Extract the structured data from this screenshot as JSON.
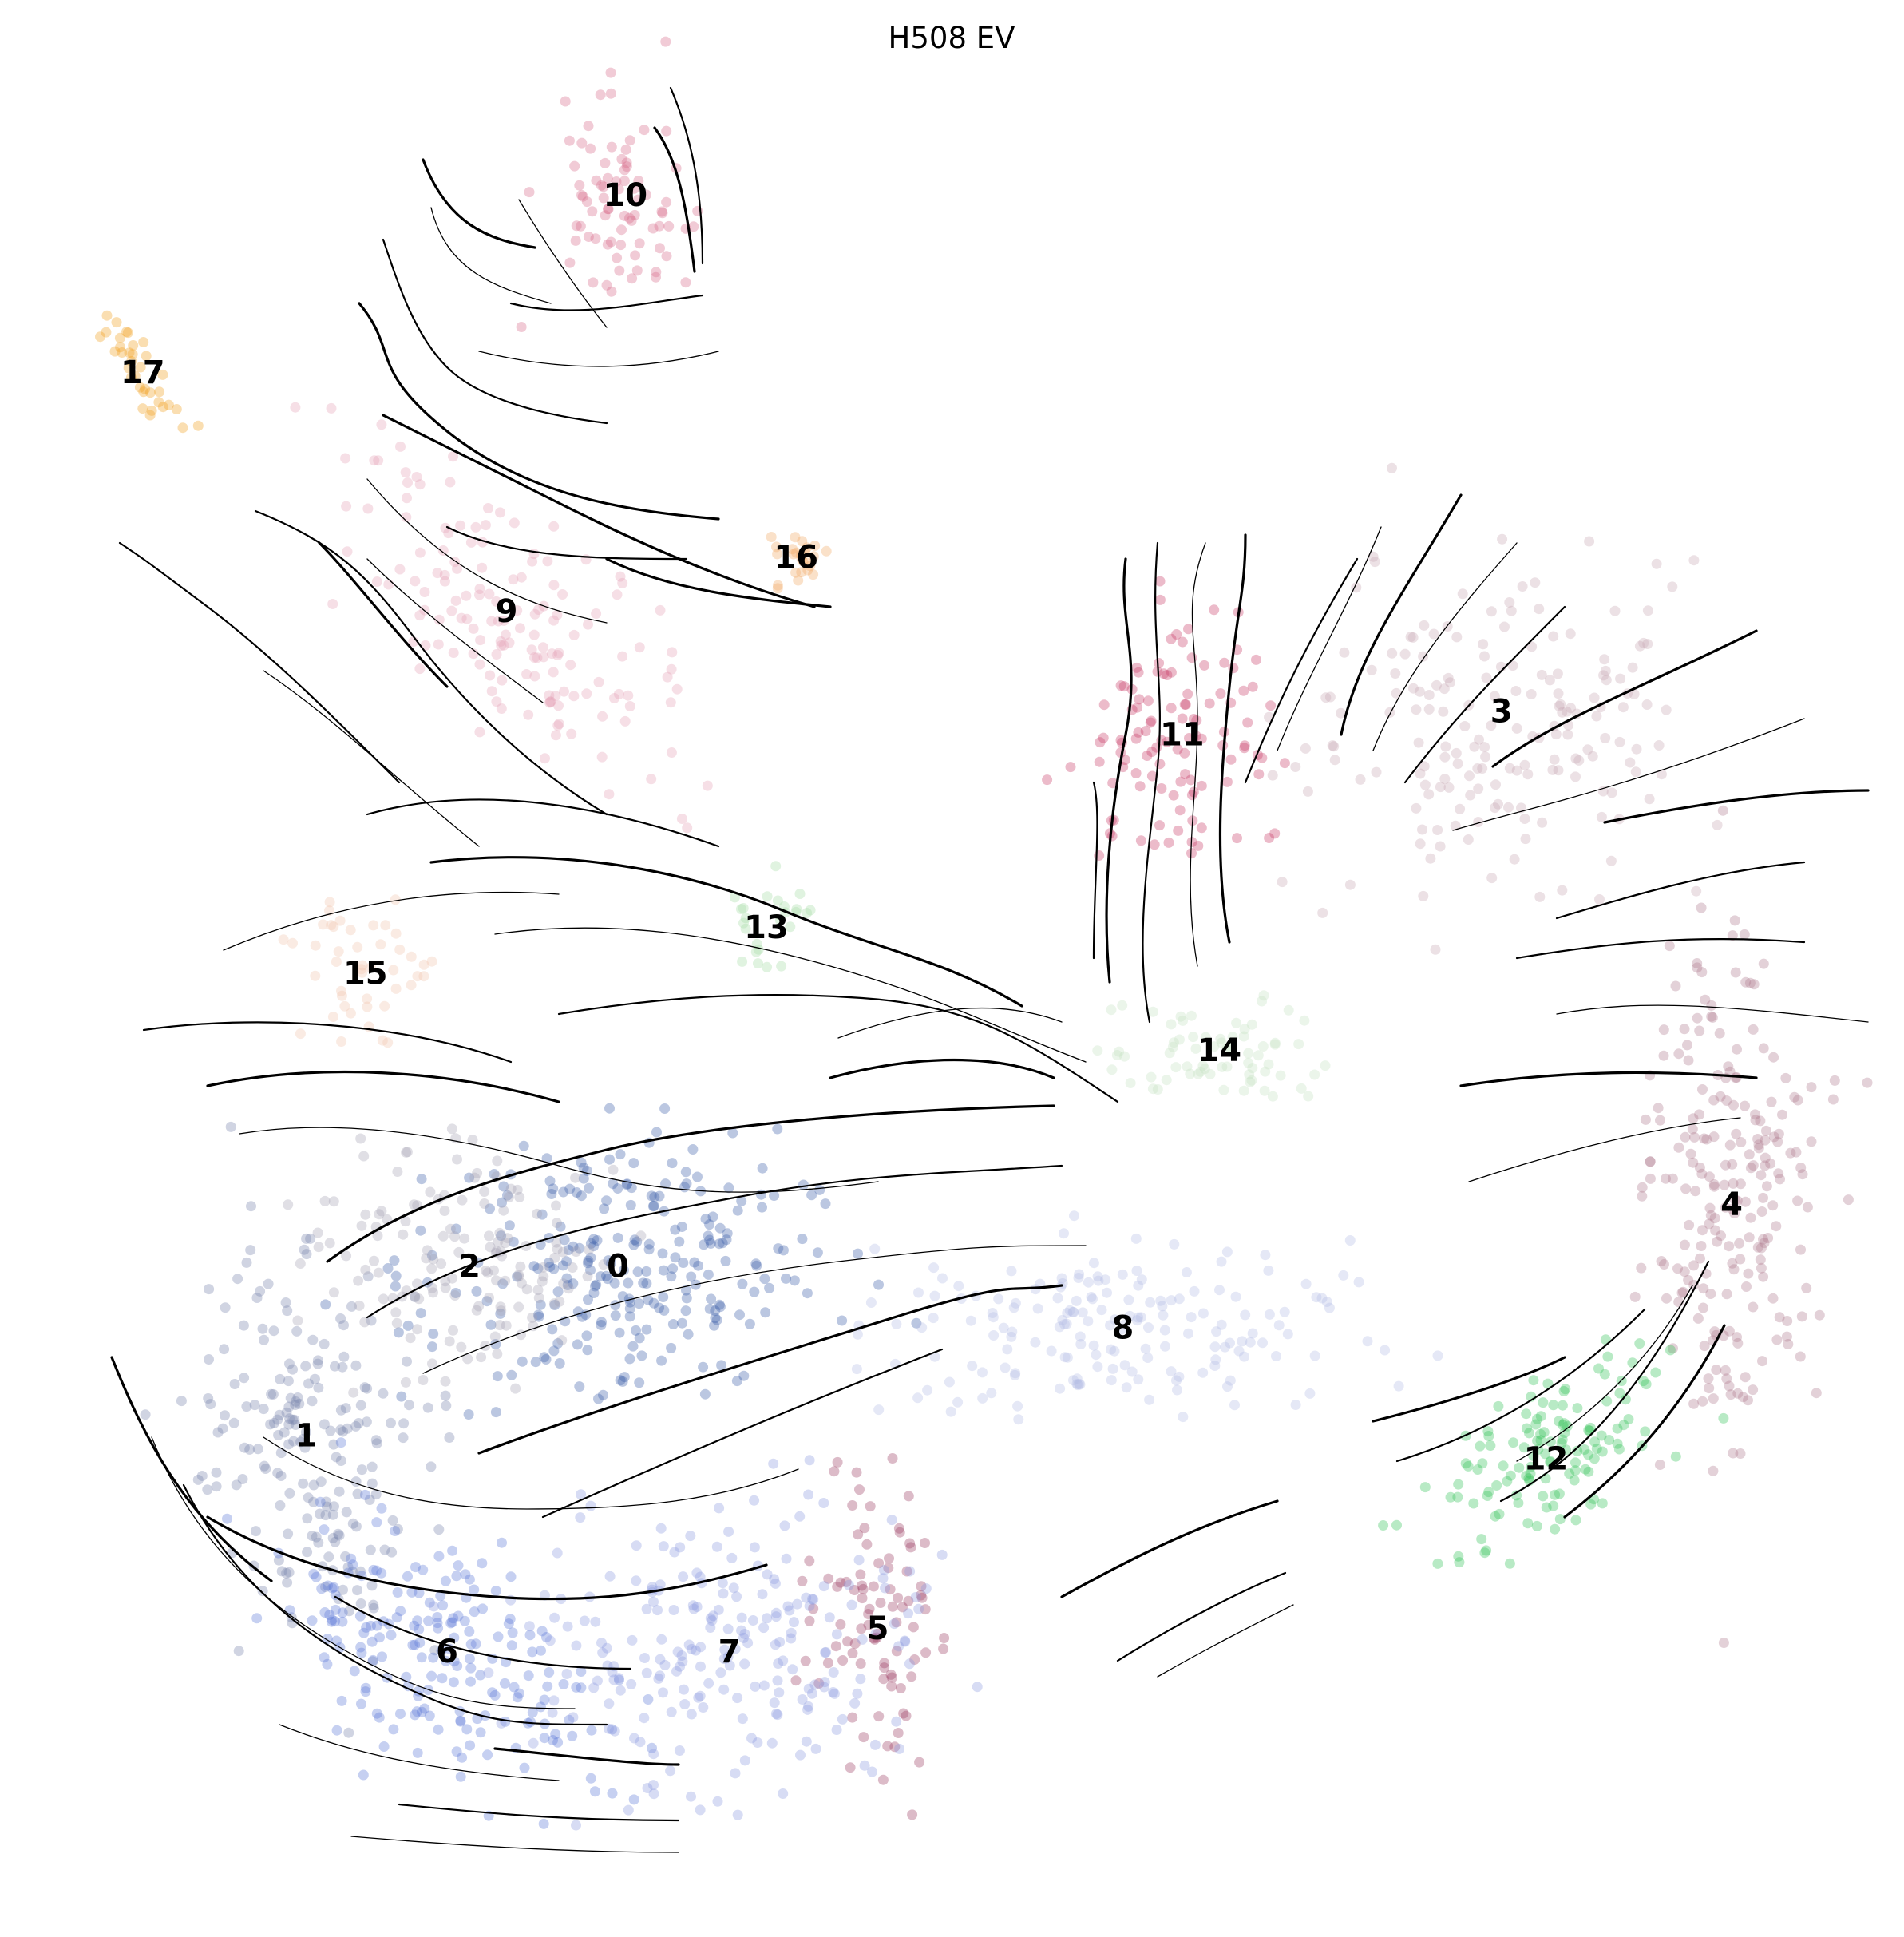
{
  "chart_data": {
    "type": "scatter",
    "title": "H508 EV",
    "xlabel": "",
    "ylabel": "",
    "grid": false,
    "axes_visible": false,
    "overlay": "velocity streamlines",
    "clusters": [
      {
        "label": "0",
        "color": "#3d5fa8",
        "center": [
          -2.0,
          -1.6
        ]
      },
      {
        "label": "1",
        "color": "#7885ad",
        "center": [
          -6.2,
          -3.8
        ]
      },
      {
        "label": "2",
        "color": "#a7a3b5",
        "center": [
          -4.0,
          -1.6
        ]
      },
      {
        "label": "3",
        "color": "#c9aab4",
        "center": [
          9.9,
          5.6
        ]
      },
      {
        "label": "4",
        "color": "#b07a8e",
        "center": [
          13.0,
          -0.8
        ]
      },
      {
        "label": "5",
        "color": "#9a3d60",
        "center": [
          1.5,
          -6.3
        ]
      },
      {
        "label": "6",
        "color": "#5b78d6",
        "center": [
          -4.3,
          -6.6
        ]
      },
      {
        "label": "7",
        "color": "#8c9be0",
        "center": [
          -0.5,
          -6.6
        ]
      },
      {
        "label": "8",
        "color": "#b4bde6",
        "center": [
          4.8,
          -2.4
        ]
      },
      {
        "label": "9",
        "color": "#e6a4b8",
        "center": [
          -3.5,
          6.9
        ]
      },
      {
        "label": "10",
        "color": "#d66b8a",
        "center": [
          -1.9,
          12.3
        ]
      },
      {
        "label": "11",
        "color": "#c93d68",
        "center": [
          5.6,
          5.3
        ]
      },
      {
        "label": "12",
        "color": "#33c45a",
        "center": [
          10.5,
          -4.1
        ]
      },
      {
        "label": "13",
        "color": "#a6dca7",
        "center": [
          0.0,
          2.8
        ]
      },
      {
        "label": "14",
        "color": "#c6e2c4",
        "center": [
          6.1,
          1.2
        ]
      },
      {
        "label": "15",
        "color": "#f0c7ae",
        "center": [
          -5.4,
          2.2
        ]
      },
      {
        "label": "16",
        "color": "#f0a865",
        "center": [
          0.4,
          7.6
        ]
      },
      {
        "label": "17",
        "color": "#f0a020",
        "center": [
          -8.4,
          10.0
        ]
      }
    ],
    "xlim": [
      -10,
      15
    ],
    "ylim": [
      -10,
      14
    ]
  }
}
